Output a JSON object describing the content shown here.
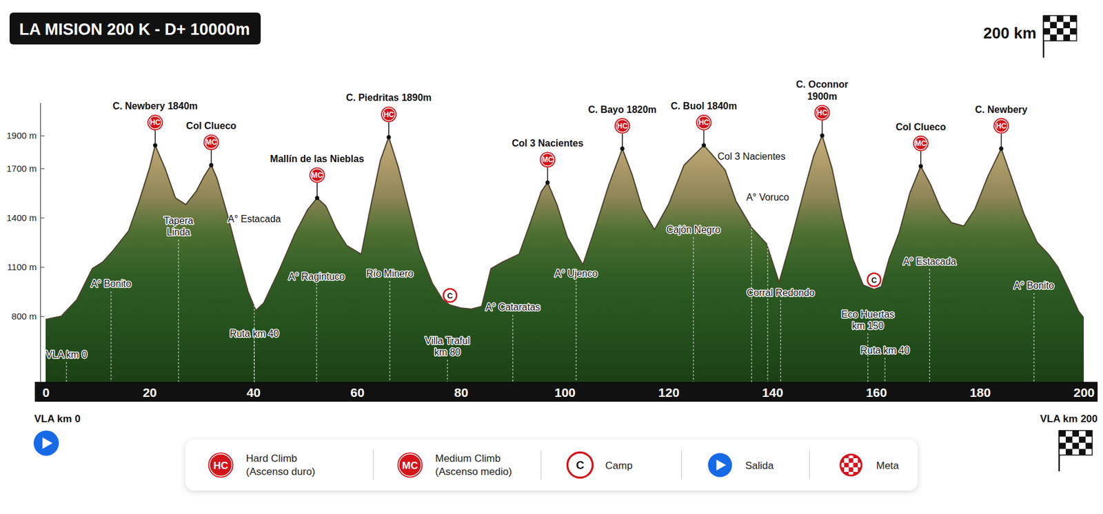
{
  "chart_data": {
    "type": "area",
    "title": "LA MISION 200 K - D+ 10000m",
    "goal": {
      "text": "200 km",
      "marker": "checker"
    },
    "x": [
      0,
      3,
      6,
      9,
      11,
      13,
      16,
      18,
      20,
      21.1,
      23,
      25,
      27,
      29,
      30.5,
      31.9,
      33,
      35,
      37,
      39,
      40.5,
      42,
      45,
      48,
      50.5,
      52.3,
      54,
      56,
      58,
      60.8,
      62.5,
      64.5,
      66.1,
      68,
      70,
      72,
      74.5,
      76.5,
      77.9,
      80,
      82,
      84,
      85.8,
      88,
      91.2,
      93.5,
      95.5,
      96.7,
      98.5,
      100.5,
      103.5,
      106,
      108.5,
      111.1,
      113,
      115,
      117.3,
      120,
      123,
      126.8,
      128.5,
      130.9,
      133,
      136,
      138.9,
      141.3,
      143.5,
      146,
      148,
      149.6,
      151.5,
      153.5,
      155.5,
      157.5,
      159.6,
      161,
      162.5,
      164.4,
      166.5,
      168.6,
      170.5,
      172.5,
      174.5,
      176.9,
      179,
      181.5,
      184.1,
      186,
      188.5,
      191,
      193.2,
      195,
      197,
      199,
      200
    ],
    "values": [
      780,
      800,
      900,
      1090,
      1130,
      1200,
      1320,
      1500,
      1700,
      1840,
      1700,
      1520,
      1480,
      1560,
      1650,
      1720,
      1640,
      1420,
      1180,
      950,
      835,
      880,
      1080,
      1300,
      1450,
      1520,
      1470,
      1330,
      1230,
      1177,
      1450,
      1750,
      1890,
      1700,
      1450,
      1200,
      1000,
      900,
      868,
      850,
      843,
      860,
      1090,
      1130,
      1177,
      1380,
      1560,
      1614,
      1480,
      1280,
      1113,
      1350,
      1600,
      1820,
      1660,
      1450,
      1327,
      1480,
      1720,
      1840,
      1780,
      1690,
      1500,
      1340,
      1240,
      1006,
      1250,
      1550,
      1780,
      1900,
      1700,
      1400,
      1150,
      990,
      963,
      980,
      1150,
      1306,
      1550,
      1713,
      1600,
      1450,
      1370,
      1349,
      1450,
      1650,
      1820,
      1650,
      1420,
      1250,
      1177,
      1100,
      970,
      830,
      790
    ],
    "xlim": [
      0,
      200
    ],
    "xticks": [
      0,
      20,
      40,
      60,
      80,
      100,
      120,
      140,
      160,
      180,
      200
    ],
    "ylim": [
      400,
      2100
    ],
    "yticks": [
      {
        "value": 800,
        "label": "800 m"
      },
      {
        "value": 1100,
        "label": "1100 m"
      },
      {
        "value": 1400,
        "label": "1400 m"
      },
      {
        "value": 1700,
        "label": "1700 m"
      },
      {
        "value": 1900,
        "label": "1900 m"
      }
    ],
    "grid": false,
    "peaks": [
      {
        "text": [
          "C. Newbery 1840m"
        ],
        "x": 21.1,
        "y": 1840,
        "badge": "HC"
      },
      {
        "text": [
          "Col Clueco"
        ],
        "x": 31.9,
        "y": 1720,
        "badge": "MC"
      },
      {
        "text": [
          "Mallín de las Nieblas"
        ],
        "x": 52.3,
        "y": 1520,
        "badge": "MC"
      },
      {
        "text": [
          "C. Piedritas 1890m"
        ],
        "x": 66.1,
        "y": 1890,
        "badge": "HC"
      },
      {
        "text": [
          "Col 3 Nacientes"
        ],
        "x": 96.7,
        "y": 1614,
        "badge": "MC"
      },
      {
        "text": [
          "C. Bayo 1820m"
        ],
        "x": 111.1,
        "y": 1820,
        "badge": "HC"
      },
      {
        "text": [
          "C. Buol 1840m"
        ],
        "x": 126.8,
        "y": 1840,
        "badge": "HC"
      },
      {
        "text": [
          "C. Oconnor",
          "1900m"
        ],
        "x": 149.6,
        "y": 1900,
        "badge": "HC"
      },
      {
        "text": [
          "Col Clueco"
        ],
        "x": 168.6,
        "y": 1713,
        "badge": "MC"
      },
      {
        "text": [
          "C. Newbery"
        ],
        "x": 184.1,
        "y": 1820,
        "badge": "HC"
      }
    ],
    "camps": [
      {
        "badge": "C",
        "x": 77.9,
        "y": 868
      },
      {
        "badge": "C",
        "x": 159.6,
        "y": 963
      }
    ],
    "annotations": [
      {
        "text": [
          "VLA km 0"
        ],
        "x": 4,
        "y": 547
      },
      {
        "text": [
          "A° Bonito"
        ],
        "x": 12.6,
        "y": 976
      },
      {
        "text": [
          "Tapera",
          "Linda"
        ],
        "x": 25.6,
        "y": 1361
      },
      {
        "text": [
          "A° Estacada"
        ],
        "x": 40.2,
        "y": 1374
      },
      {
        "text": [
          "Ruta km 40"
        ],
        "x": 40.2,
        "y": 676
      },
      {
        "text": [
          "A° Ragintuco"
        ],
        "x": 52.2,
        "y": 1023
      },
      {
        "text": [
          "Río Minero"
        ],
        "x": 66.3,
        "y": 1040
      },
      {
        "text": [
          "Villa Traful",
          "km 80"
        ],
        "x": 77.4,
        "y": 629
      },
      {
        "text": [
          "A° Cataratas"
        ],
        "x": 90,
        "y": 834
      },
      {
        "text": [
          "A° Ujenco"
        ],
        "x": 102.2,
        "y": 1040
      },
      {
        "text": [
          "Cajón Negro"
        ],
        "x": 124.8,
        "y": 1306
      },
      {
        "text": [
          "Col 3 Nacientes"
        ],
        "x": 136,
        "y": 1752
      },
      {
        "text": [
          "A° Voruco"
        ],
        "x": 139.1,
        "y": 1503
      },
      {
        "text": [
          "Corral Redondo"
        ],
        "x": 141.6,
        "y": 924
      },
      {
        "text": [
          "Eco Huertas",
          "km 150"
        ],
        "x": 158.4,
        "y": 791
      },
      {
        "text": [
          "Ruta km 40"
        ],
        "x": 161.7,
        "y": 573
      },
      {
        "text": [
          "A° Estacada"
        ],
        "x": 170.3,
        "y": 1113
      },
      {
        "text": [
          "A° Bonito"
        ],
        "x": 190.4,
        "y": 967
      }
    ],
    "start": {
      "text": "VLA km 0",
      "marker": "play"
    },
    "finish": {
      "text": "VLA km 200",
      "marker": "checker"
    },
    "legend": "bottom",
    "legend_items": [
      {
        "marker": "badge",
        "symbol": "HC",
        "label": [
          "Hard Climb",
          "(Ascenso duro)"
        ]
      },
      {
        "marker": "badge",
        "symbol": "MC",
        "label": [
          "Medium Climb",
          "(Ascenso medio)"
        ]
      },
      {
        "marker": "ring",
        "symbol": "C",
        "label": [
          "Camp"
        ]
      },
      {
        "marker": "play",
        "label": [
          "Salida"
        ]
      },
      {
        "marker": "checker",
        "label": [
          "Meta"
        ]
      }
    ]
  }
}
